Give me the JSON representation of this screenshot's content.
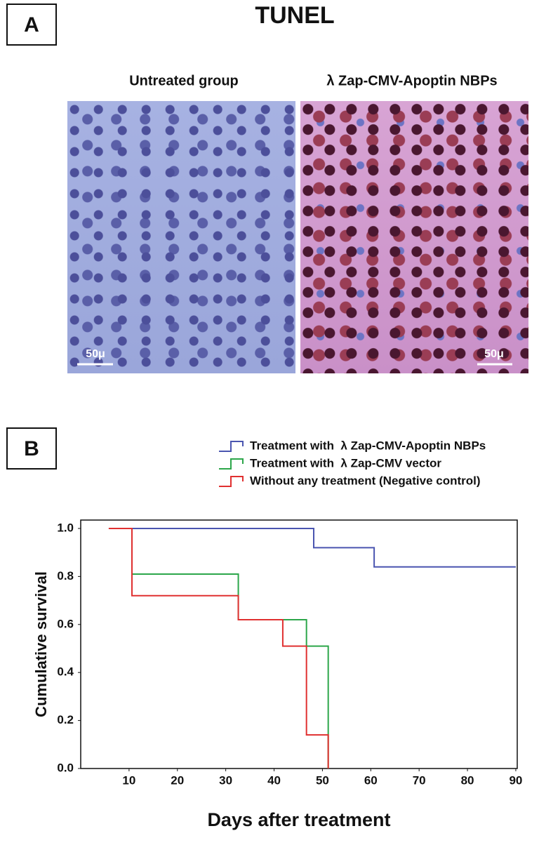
{
  "panel_a": {
    "label": "A",
    "title": "TUNEL",
    "images": [
      {
        "caption": "Untreated group",
        "scale_bar": "50μ"
      },
      {
        "caption": "λ Zap-CMV-Apoptin NBPs",
        "scale_bar": "50μ"
      }
    ]
  },
  "panel_b_label": "B",
  "chart_data": {
    "type": "line",
    "drawstyle": "steps-post",
    "xlabel": "Days after treatment",
    "ylabel": "Cumulative survival",
    "xlim": [
      0,
      90.3
    ],
    "xticks": [
      10,
      20,
      30,
      40,
      50,
      60,
      70,
      80,
      90
    ],
    "ylim": [
      0,
      1.035
    ],
    "yticks": [
      {
        "value": 0,
        "label": "0.0"
      },
      {
        "value": 0.2,
        "label": "0.2"
      },
      {
        "value": 0.4,
        "label": "0.4"
      },
      {
        "value": 0.6,
        "label": "0.6"
      },
      {
        "value": 0.8,
        "label": "0.8"
      },
      {
        "value": 1,
        "label": "1.0"
      }
    ],
    "grid": false,
    "legend": "upper right",
    "series": [
      {
        "name": "Treatment with  λ Zap-CMV-Apoptin NBPs",
        "color": "#4a55b0",
        "x": [
          5.8,
          48.2,
          60.7,
          90
        ],
        "values": [
          1,
          0.92,
          0.84,
          0.84
        ]
      },
      {
        "name": "Treatment with  λ Zap-CMV vector",
        "color": "#2ca64a",
        "x": [
          5.8,
          10.6,
          32.6,
          46.7,
          51.2
        ],
        "values": [
          1,
          0.81,
          0.62,
          0.51,
          0
        ]
      },
      {
        "name": "Without any treatment (Negative control)",
        "color": "#e03030",
        "x": [
          5.8,
          10.6,
          32.6,
          41.8,
          46.7,
          51.2
        ],
        "values": [
          1,
          0.72,
          0.62,
          0.51,
          0.14,
          0
        ]
      }
    ]
  }
}
